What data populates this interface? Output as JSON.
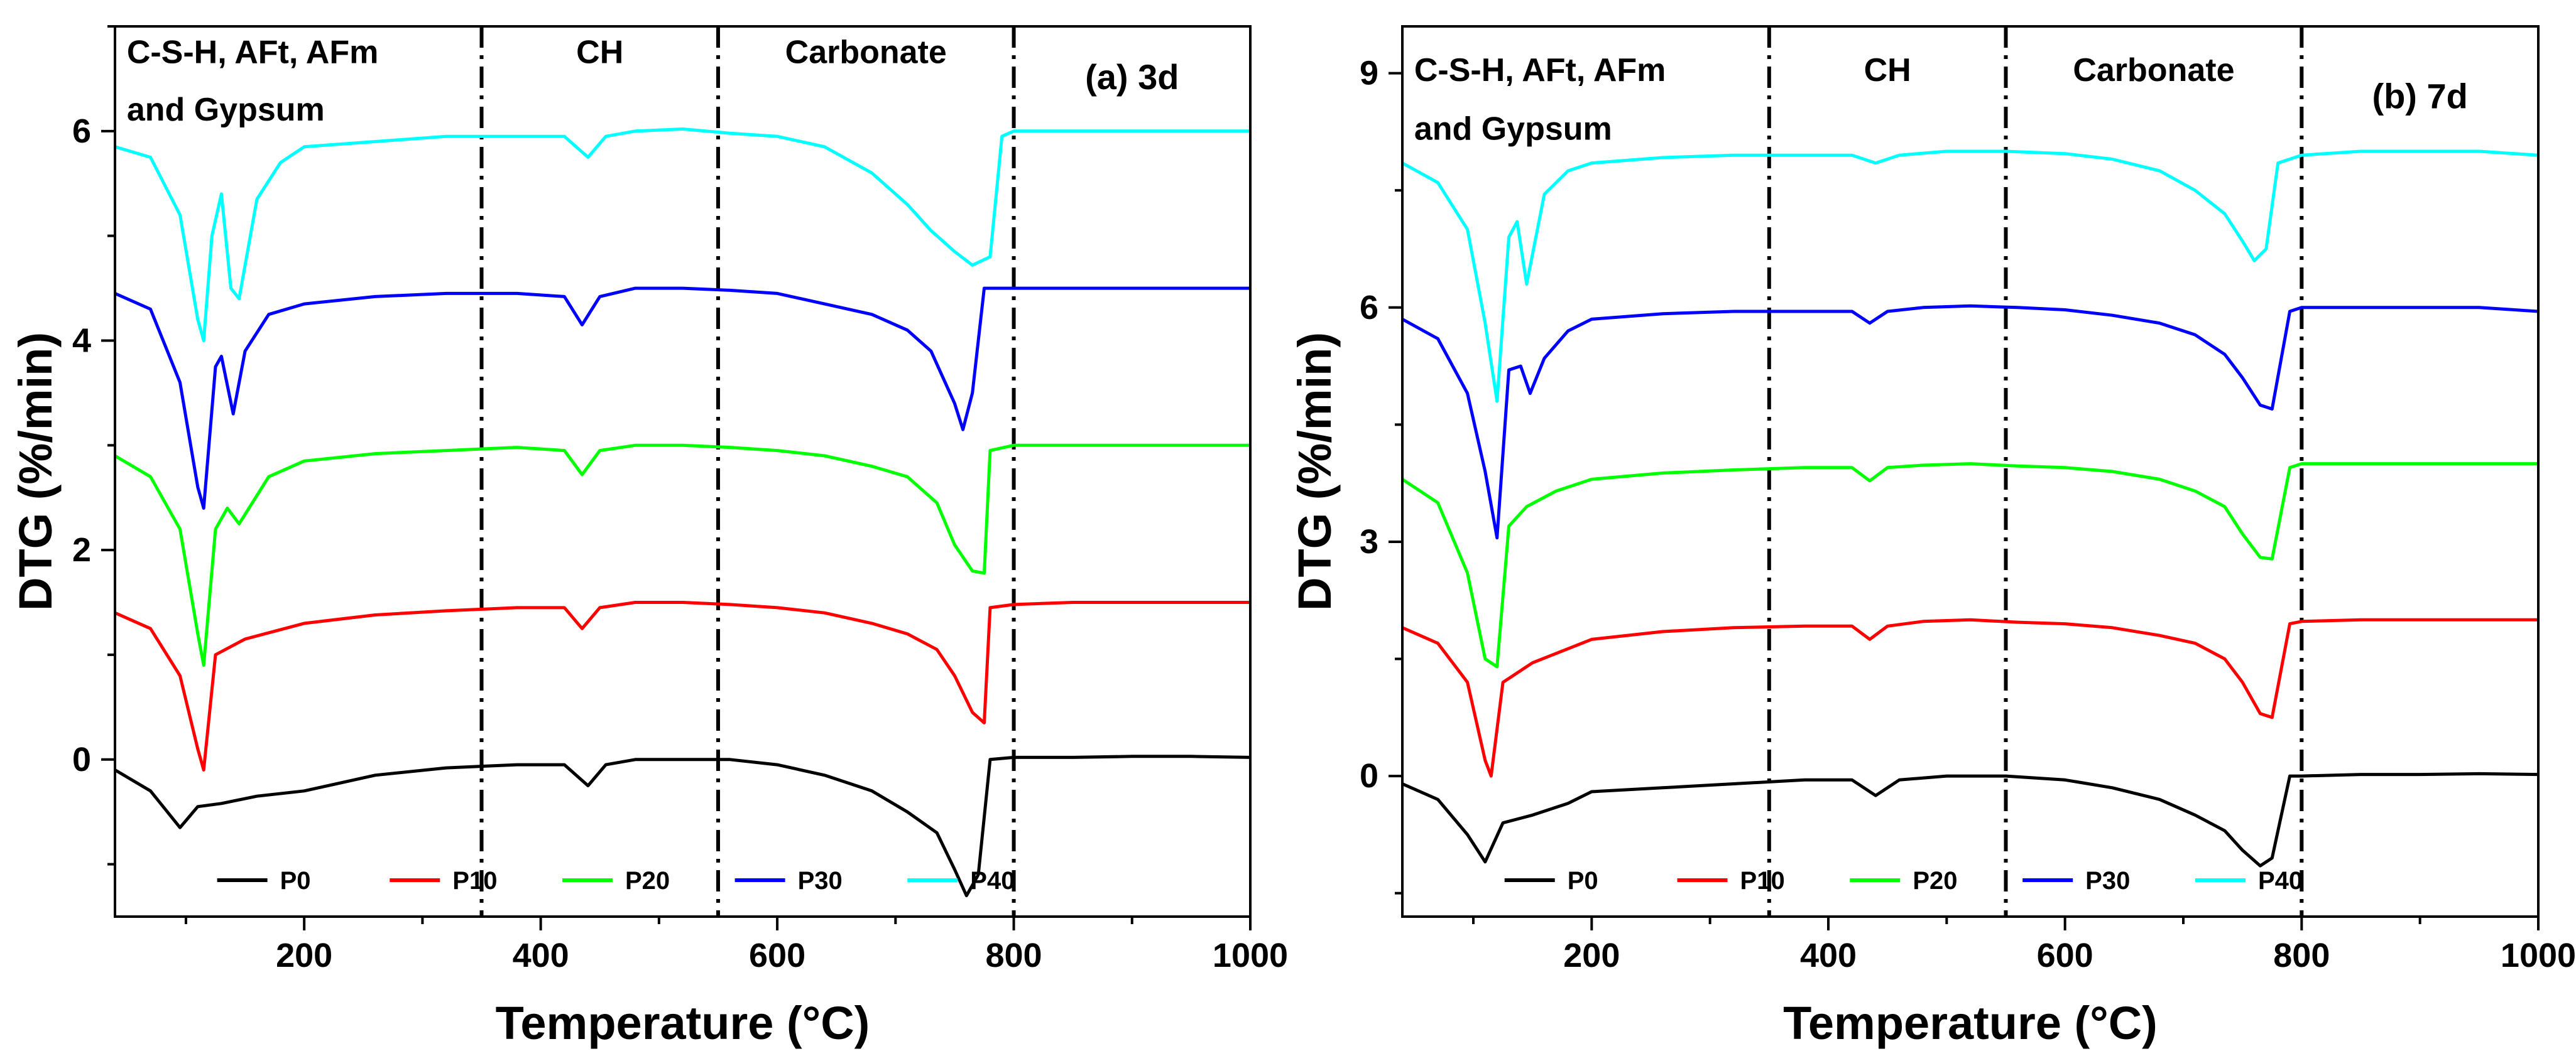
{
  "series_colors": {
    "P0": "#000000",
    "P10": "#ff0000",
    "P20": "#00ff00",
    "P30": "#0000ff",
    "P40": "#00ffff"
  },
  "chart_data": [
    {
      "type": "line",
      "panel_label": "(a) 3d",
      "xlabel": "Temperature (°C)",
      "ylabel": "DTG (%/min)",
      "xlim": [
        40,
        1000
      ],
      "ylim": [
        -1.5,
        7
      ],
      "xticks": [
        200,
        400,
        600,
        800,
        1000
      ],
      "yticks": [
        0,
        2,
        4,
        6
      ],
      "region_dividers": [
        350,
        550,
        800
      ],
      "region_labels": [
        {
          "text": "C-S-H, AFt, AFm",
          "x": 50,
          "y": 6.65
        },
        {
          "text": "and Gypsum",
          "x": 50,
          "y": 6.1
        },
        {
          "text": "CH",
          "x": 450,
          "y": 6.65
        },
        {
          "text": "Carbonate",
          "x": 675,
          "y": 6.65
        },
        {
          "text": "(a) 3d",
          "x": 900,
          "y": 6.4
        }
      ],
      "legend": [
        "P0",
        "P10",
        "P20",
        "P30",
        "P40"
      ],
      "legend_position": "bottom",
      "series": [
        {
          "name": "P0",
          "x": [
            40,
            70,
            95,
            110,
            130,
            160,
            200,
            260,
            320,
            380,
            420,
            440,
            455,
            480,
            520,
            560,
            600,
            640,
            680,
            710,
            735,
            750,
            760,
            770,
            780,
            800,
            850,
            900,
            950,
            1000
          ],
          "y": [
            -0.1,
            -0.3,
            -0.65,
            -0.45,
            -0.42,
            -0.35,
            -0.3,
            -0.15,
            -0.08,
            -0.05,
            -0.05,
            -0.25,
            -0.05,
            0,
            0,
            0,
            -0.05,
            -0.15,
            -0.3,
            -0.5,
            -0.7,
            -1.05,
            -1.3,
            -1.1,
            0,
            0.02,
            0.02,
            0.03,
            0.03,
            0.02
          ]
        },
        {
          "name": "P10",
          "x": [
            40,
            70,
            95,
            110,
            115,
            125,
            150,
            200,
            260,
            320,
            380,
            420,
            435,
            450,
            480,
            520,
            560,
            600,
            640,
            680,
            710,
            735,
            750,
            765,
            775,
            780,
            800,
            850,
            900,
            950,
            1000
          ],
          "y": [
            1.4,
            1.25,
            0.8,
            0.1,
            -0.1,
            1.0,
            1.15,
            1.3,
            1.38,
            1.42,
            1.45,
            1.45,
            1.25,
            1.45,
            1.5,
            1.5,
            1.48,
            1.45,
            1.4,
            1.3,
            1.2,
            1.05,
            0.8,
            0.45,
            0.35,
            1.45,
            1.48,
            1.5,
            1.5,
            1.5,
            1.5
          ]
        },
        {
          "name": "P20",
          "x": [
            40,
            70,
            95,
            110,
            115,
            125,
            135,
            145,
            170,
            200,
            260,
            320,
            380,
            420,
            435,
            450,
            480,
            520,
            560,
            600,
            640,
            680,
            710,
            735,
            750,
            765,
            775,
            780,
            800,
            850,
            900,
            950,
            1000
          ],
          "y": [
            2.9,
            2.7,
            2.2,
            1.2,
            0.9,
            2.2,
            2.4,
            2.25,
            2.7,
            2.85,
            2.92,
            2.95,
            2.98,
            2.95,
            2.72,
            2.95,
            3.0,
            3.0,
            2.98,
            2.95,
            2.9,
            2.8,
            2.7,
            2.45,
            2.05,
            1.8,
            1.78,
            2.95,
            3.0,
            3.0,
            3.0,
            3.0,
            3.0
          ]
        },
        {
          "name": "P30",
          "x": [
            40,
            70,
            95,
            110,
            115,
            125,
            130,
            140,
            150,
            170,
            200,
            260,
            320,
            380,
            420,
            435,
            450,
            480,
            520,
            560,
            600,
            640,
            680,
            710,
            730,
            750,
            757,
            765,
            775,
            800,
            850,
            900,
            950,
            1000
          ],
          "y": [
            4.45,
            4.3,
            3.6,
            2.6,
            2.4,
            3.75,
            3.85,
            3.3,
            3.9,
            4.25,
            4.35,
            4.42,
            4.45,
            4.45,
            4.42,
            4.15,
            4.42,
            4.5,
            4.5,
            4.48,
            4.45,
            4.35,
            4.25,
            4.1,
            3.9,
            3.4,
            3.15,
            3.5,
            4.5,
            4.5,
            4.5,
            4.5,
            4.5,
            4.5
          ]
        },
        {
          "name": "P40",
          "x": [
            40,
            70,
            95,
            110,
            115,
            122,
            130,
            138,
            145,
            160,
            180,
            200,
            260,
            320,
            380,
            420,
            440,
            455,
            480,
            520,
            560,
            600,
            640,
            680,
            710,
            730,
            750,
            765,
            780,
            790,
            800,
            850,
            900,
            950,
            1000
          ],
          "y": [
            5.85,
            5.75,
            5.2,
            4.2,
            4.0,
            5.0,
            5.4,
            4.5,
            4.4,
            5.35,
            5.7,
            5.85,
            5.9,
            5.95,
            5.95,
            5.95,
            5.75,
            5.95,
            6.0,
            6.02,
            5.98,
            5.95,
            5.85,
            5.6,
            5.3,
            5.05,
            4.85,
            4.72,
            4.8,
            5.95,
            6.0,
            6.0,
            6.0,
            6.0,
            6.0
          ]
        }
      ]
    },
    {
      "type": "line",
      "panel_label": "(b) 7d",
      "xlabel": "Temperature (°C)",
      "ylabel": "DTG (%/min)",
      "xlim": [
        40,
        1000
      ],
      "ylim": [
        -1.8,
        9.6
      ],
      "xticks": [
        200,
        400,
        600,
        800,
        1000
      ],
      "yticks": [
        0,
        3,
        6,
        9
      ],
      "region_dividers": [
        350,
        550,
        800
      ],
      "region_labels": [
        {
          "text": "C-S-H, AFt, AFm",
          "x": 50,
          "y": 8.9
        },
        {
          "text": "and Gypsum",
          "x": 50,
          "y": 8.15
        },
        {
          "text": "CH",
          "x": 450,
          "y": 8.9
        },
        {
          "text": "Carbonate",
          "x": 675,
          "y": 8.9
        },
        {
          "text": "(b) 7d",
          "x": 900,
          "y": 8.55
        }
      ],
      "legend": [
        "P0",
        "P10",
        "P20",
        "P30",
        "P40"
      ],
      "legend_position": "bottom",
      "series": [
        {
          "name": "P0",
          "x": [
            40,
            70,
            95,
            110,
            125,
            150,
            180,
            200,
            260,
            320,
            380,
            420,
            440,
            460,
            500,
            550,
            600,
            640,
            680,
            710,
            735,
            750,
            765,
            775,
            790,
            800,
            850,
            900,
            950,
            1000
          ],
          "y": [
            -0.1,
            -0.3,
            -0.75,
            -1.1,
            -0.6,
            -0.5,
            -0.35,
            -0.2,
            -0.15,
            -0.1,
            -0.05,
            -0.05,
            -0.25,
            -0.05,
            0,
            0,
            -0.05,
            -0.15,
            -0.3,
            -0.5,
            -0.7,
            -0.95,
            -1.15,
            -1.05,
            0,
            0,
            0.02,
            0.02,
            0.03,
            0.02
          ]
        },
        {
          "name": "P10",
          "x": [
            40,
            70,
            95,
            110,
            115,
            125,
            150,
            200,
            260,
            320,
            380,
            420,
            435,
            450,
            480,
            520,
            560,
            600,
            640,
            680,
            710,
            735,
            750,
            765,
            775,
            790,
            800,
            850,
            900,
            950,
            1000
          ],
          "y": [
            1.9,
            1.7,
            1.2,
            0.2,
            0.0,
            1.2,
            1.45,
            1.75,
            1.85,
            1.9,
            1.92,
            1.92,
            1.75,
            1.92,
            1.98,
            2.0,
            1.97,
            1.95,
            1.9,
            1.8,
            1.7,
            1.5,
            1.2,
            0.8,
            0.75,
            1.95,
            1.98,
            2.0,
            2.0,
            2.0,
            2.0
          ]
        },
        {
          "name": "P20",
          "x": [
            40,
            70,
            95,
            110,
            120,
            130,
            145,
            170,
            200,
            260,
            320,
            380,
            420,
            435,
            450,
            480,
            520,
            560,
            600,
            640,
            680,
            710,
            735,
            750,
            765,
            775,
            790,
            800,
            850,
            900,
            950,
            1000
          ],
          "y": [
            3.8,
            3.5,
            2.6,
            1.5,
            1.4,
            3.2,
            3.45,
            3.65,
            3.8,
            3.88,
            3.92,
            3.95,
            3.95,
            3.78,
            3.95,
            3.98,
            4.0,
            3.97,
            3.95,
            3.9,
            3.8,
            3.65,
            3.45,
            3.1,
            2.8,
            2.78,
            3.95,
            4.0,
            4.0,
            4.0,
            4.0,
            4.0
          ]
        },
        {
          "name": "P30",
          "x": [
            40,
            70,
            95,
            110,
            120,
            130,
            140,
            148,
            160,
            180,
            200,
            260,
            320,
            380,
            420,
            435,
            450,
            480,
            520,
            560,
            600,
            640,
            680,
            710,
            735,
            750,
            765,
            775,
            790,
            800,
            850,
            900,
            950,
            1000
          ],
          "y": [
            5.85,
            5.6,
            4.9,
            3.9,
            3.05,
            5.2,
            5.25,
            4.9,
            5.35,
            5.7,
            5.85,
            5.92,
            5.95,
            5.95,
            5.95,
            5.8,
            5.95,
            6.0,
            6.02,
            6.0,
            5.97,
            5.9,
            5.8,
            5.65,
            5.4,
            5.1,
            4.75,
            4.7,
            5.95,
            6.0,
            6.0,
            6.0,
            6.0,
            5.95
          ]
        },
        {
          "name": "P40",
          "x": [
            40,
            70,
            95,
            110,
            120,
            130,
            137,
            145,
            160,
            180,
            200,
            260,
            320,
            380,
            420,
            440,
            460,
            500,
            550,
            600,
            640,
            680,
            710,
            735,
            750,
            760,
            770,
            780,
            800,
            850,
            900,
            950,
            1000
          ],
          "y": [
            7.85,
            7.6,
            7.0,
            5.8,
            4.8,
            6.9,
            7.1,
            6.3,
            7.45,
            7.75,
            7.85,
            7.92,
            7.95,
            7.95,
            7.95,
            7.85,
            7.95,
            8.0,
            8.0,
            7.97,
            7.9,
            7.75,
            7.5,
            7.2,
            6.85,
            6.6,
            6.75,
            7.85,
            7.95,
            8.0,
            8.0,
            8.0,
            7.95
          ]
        }
      ]
    }
  ]
}
